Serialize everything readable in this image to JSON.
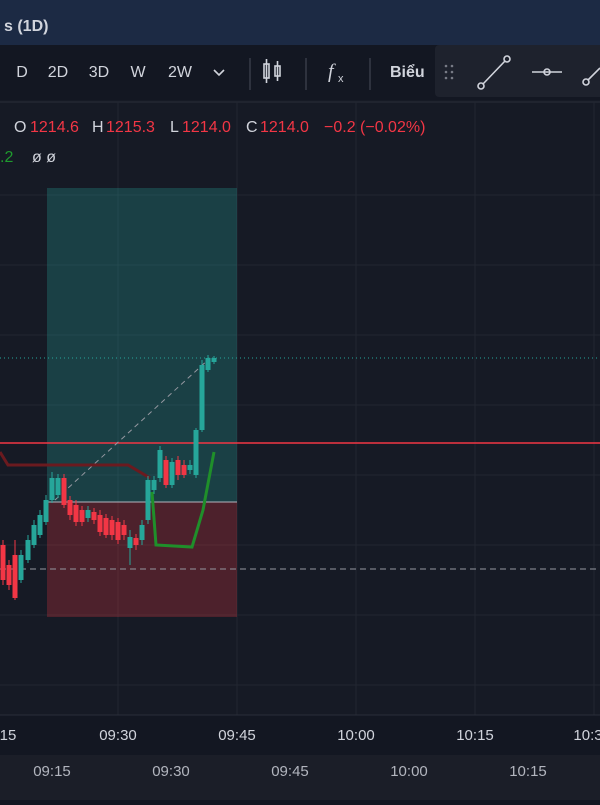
{
  "title": "s (1D)",
  "toolbar": {
    "intervals": [
      "D",
      "2D",
      "3D",
      "W",
      "2W"
    ],
    "chart_menu": "Biểu"
  },
  "legend": {
    "open_label": "O",
    "open": "1214.6",
    "high_label": "H",
    "high": "1215.3",
    "low_label": "L",
    "low": "1214.0",
    "close_label": "C",
    "close": "1214.0",
    "change": "−0.2 (−0.02%)",
    "indicator_value": ".2",
    "indicator_extra": "ø ø"
  },
  "time_axis": [
    "15",
    "09:30",
    "09:45",
    "10:00",
    "10:15",
    "10:3"
  ],
  "bottom_axis": [
    "09:15",
    "09:30",
    "09:45",
    "10:00",
    "10:15"
  ]
}
